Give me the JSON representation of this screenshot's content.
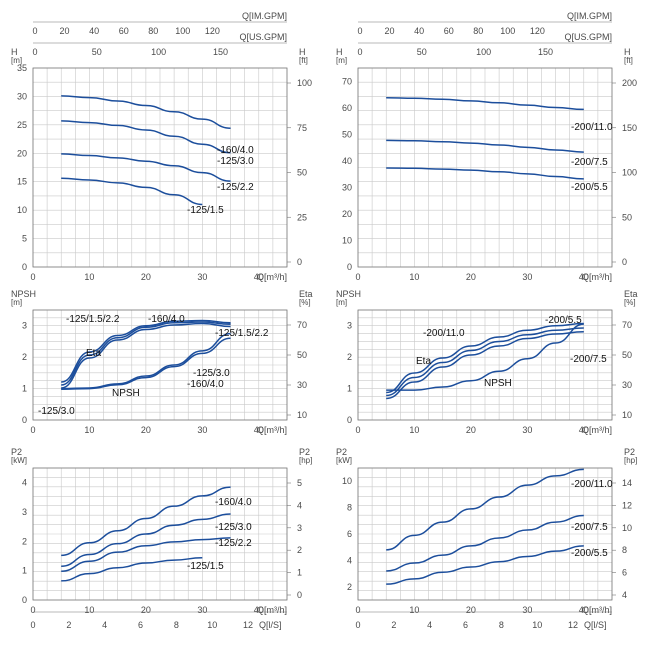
{
  "colors": {
    "curve": "#1c4e9c",
    "grid": "#c9c9c9",
    "axis": "#777777",
    "text": "#4a4a4a",
    "label": "#111111"
  },
  "chart_data": [
    {
      "type": "line",
      "grid": true,
      "top_axes": [
        {
          "label": "Q[IM.GPM]",
          "ticks": [
            0,
            20,
            40,
            60,
            80,
            100,
            120
          ]
        },
        {
          "label": "Q[US.GPM]",
          "ticks": [
            0,
            50,
            100,
            150
          ]
        }
      ],
      "xlabel": "Q[m³/h]",
      "xlim": [
        0,
        45
      ],
      "xticks": [
        0,
        10,
        20,
        30,
        40
      ],
      "ylabel": "H",
      "yunit": "[m]",
      "ylim": [
        0,
        35
      ],
      "yticks": [
        0,
        5,
        10,
        15,
        20,
        25,
        30,
        35
      ],
      "y2label": "H",
      "y2unit": "[ft]",
      "y2ticks": [
        0,
        25,
        50,
        75,
        100
      ],
      "series": [
        {
          "name": "-160/4.0",
          "x": [
            5,
            10,
            15,
            20,
            25,
            30,
            35
          ],
          "y": [
            30.1,
            29.8,
            29.2,
            28.4,
            27.3,
            26.0,
            24.4
          ]
        },
        {
          "name": "-125/3.0",
          "x": [
            5,
            10,
            15,
            20,
            25,
            30,
            35
          ],
          "y": [
            25.7,
            25.4,
            24.9,
            24.1,
            23.0,
            21.6,
            20.1
          ]
        },
        {
          "name": "-125/2.2",
          "x": [
            5,
            10,
            15,
            20,
            25,
            30,
            35
          ],
          "y": [
            19.9,
            19.6,
            19.2,
            18.6,
            17.8,
            16.6,
            15.1
          ]
        },
        {
          "name": "-125/1.5",
          "x": [
            5,
            10,
            15,
            20,
            25,
            30
          ],
          "y": [
            15.6,
            15.3,
            14.8,
            14.0,
            12.7,
            11.0
          ]
        }
      ]
    },
    {
      "type": "line",
      "grid": true,
      "top_axes": [
        {
          "label": "Q[IM.GPM]",
          "ticks": [
            0,
            20,
            40,
            60,
            80,
            100,
            120
          ]
        },
        {
          "label": "Q[US.GPM]",
          "ticks": [
            0,
            50,
            100,
            150
          ]
        }
      ],
      "xlabel": "Q[m³/h]",
      "xlim": [
        0,
        45
      ],
      "xticks": [
        0,
        10,
        20,
        30,
        40
      ],
      "ylabel": "H",
      "yunit": "[m]",
      "ylim": [
        0,
        75
      ],
      "yticks": [
        0,
        10,
        20,
        30,
        40,
        50,
        60,
        70
      ],
      "y2label": "H",
      "y2unit": "[ft]",
      "y2ticks": [
        0,
        50,
        100,
        150,
        200
      ],
      "series": [
        {
          "name": "-200/11.0",
          "x": [
            5,
            10,
            15,
            20,
            25,
            30,
            35,
            40
          ],
          "y": [
            63.8,
            63.6,
            63.2,
            62.6,
            61.9,
            61.0,
            60.1,
            59.4
          ]
        },
        {
          "name": "-200/7.5",
          "x": [
            5,
            10,
            15,
            20,
            25,
            30,
            35,
            40
          ],
          "y": [
            47.7,
            47.6,
            47.2,
            46.7,
            46.0,
            45.1,
            44.1,
            43.3
          ]
        },
        {
          "name": "-200/5.5",
          "x": [
            5,
            10,
            15,
            20,
            25,
            30,
            35,
            40
          ],
          "y": [
            37.3,
            37.2,
            36.9,
            36.5,
            35.9,
            35.1,
            34.1,
            33.2
          ]
        }
      ]
    },
    {
      "type": "line",
      "grid": true,
      "xlabel": "Q[m³/h]",
      "xlim": [
        0,
        45
      ],
      "xticks": [
        0,
        10,
        20,
        30,
        40
      ],
      "ylabel": "NPSH",
      "yunit": "[m]",
      "ylim": [
        0,
        3.5
      ],
      "yticks": [
        0,
        1,
        2,
        3
      ],
      "y2label": "Eta",
      "y2unit": "[%]",
      "y2ticks": [
        10,
        30,
        50,
        70
      ],
      "series": [
        {
          "group": "Eta",
          "x": [
            5,
            10,
            15,
            20,
            25,
            30,
            35
          ],
          "y2": [
            32,
            52,
            63,
            69.5,
            72.5,
            73,
            71.5
          ]
        },
        {
          "group": "Eta",
          "x": [
            5,
            10,
            15,
            20,
            25,
            30,
            35
          ],
          "y2": [
            30,
            50,
            61.5,
            68.5,
            71.5,
            72,
            70.5
          ]
        },
        {
          "group": "Eta",
          "x": [
            5,
            10,
            15,
            20,
            25,
            30,
            35
          ],
          "y2": [
            28,
            48,
            60,
            67,
            70,
            71,
            69
          ]
        },
        {
          "group": "NPSH",
          "x": [
            5,
            10,
            15,
            20,
            25,
            30,
            35
          ],
          "y": [
            1.0,
            1.02,
            1.15,
            1.4,
            1.75,
            2.2,
            2.75
          ]
        },
        {
          "group": "NPSH",
          "x": [
            5,
            10,
            15,
            20,
            25,
            30,
            35
          ],
          "y": [
            0.98,
            1.0,
            1.12,
            1.35,
            1.7,
            2.12,
            2.6
          ]
        }
      ],
      "labels": [
        "-125/1.5/2.2",
        "-160/4.0",
        "-125/1.5/2.2",
        "Eta",
        "-125/3.0",
        "-160/4.0",
        "NPSH",
        "-125/3.0"
      ]
    },
    {
      "type": "line",
      "grid": true,
      "xlabel": "Q[m³/h]",
      "xlim": [
        0,
        45
      ],
      "xticks": [
        0,
        10,
        20,
        30,
        40
      ],
      "ylabel": "NPSH",
      "yunit": "[m]",
      "ylim": [
        0,
        3.5
      ],
      "yticks": [
        0,
        1,
        2,
        3
      ],
      "y2label": "Eta",
      "y2unit": "[%]",
      "y2ticks": [
        10,
        30,
        50,
        70
      ],
      "series": [
        {
          "group": "Eta",
          "name": "-200/5.5",
          "x": [
            5,
            10,
            15,
            20,
            25,
            30,
            35,
            40
          ],
          "y2": [
            25,
            38,
            48,
            56,
            62,
            66.5,
            69.5,
            71
          ]
        },
        {
          "group": "Eta",
          "name": "-200/7.5",
          "x": [
            5,
            10,
            15,
            20,
            25,
            30,
            35,
            40
          ],
          "y2": [
            23,
            35,
            45,
            53,
            59,
            63.5,
            66.5,
            68
          ]
        },
        {
          "group": "Eta",
          "name": "-200/11.0",
          "x": [
            5,
            10,
            15,
            20,
            25,
            30,
            35,
            40
          ],
          "y2": [
            21,
            32,
            42,
            50,
            56,
            61,
            64,
            65.5
          ]
        },
        {
          "group": "NPSH",
          "x": [
            5,
            10,
            15,
            20,
            25,
            30,
            35,
            40
          ],
          "y": [
            0.95,
            0.95,
            1.05,
            1.25,
            1.55,
            1.95,
            2.45,
            3.05
          ]
        }
      ],
      "labels": [
        "-200/5.5",
        "-200/7.5",
        "-200/11.0",
        "Eta",
        "NPSH"
      ]
    },
    {
      "type": "line",
      "grid": true,
      "xlabel": "Q[m³/h]",
      "xlim": [
        0,
        45
      ],
      "xticks": [
        0,
        10,
        20,
        30,
        40
      ],
      "bottom_axis": {
        "label": "Q[l/S]",
        "ticks": [
          0,
          2,
          4,
          6,
          8,
          10,
          12
        ]
      },
      "ylabel": "P2",
      "yunit": "[kW]",
      "ylim": [
        0,
        4.5
      ],
      "yticks": [
        0,
        1,
        2,
        3,
        4
      ],
      "y2label": "P2",
      "y2unit": "[hp]",
      "y2ticks": [
        0,
        1,
        2,
        3,
        4,
        5
      ],
      "series": [
        {
          "name": "-160/4.0",
          "x": [
            5,
            10,
            15,
            20,
            25,
            30,
            35
          ],
          "y": [
            1.52,
            1.95,
            2.36,
            2.78,
            3.2,
            3.55,
            3.85
          ]
        },
        {
          "name": "-125/3.0",
          "x": [
            5,
            10,
            15,
            20,
            25,
            30,
            35
          ],
          "y": [
            1.15,
            1.55,
            1.92,
            2.25,
            2.55,
            2.75,
            2.93
          ]
        },
        {
          "name": "-125/2.2",
          "x": [
            5,
            10,
            15,
            20,
            25,
            30,
            35
          ],
          "y": [
            0.98,
            1.32,
            1.63,
            1.85,
            1.98,
            2.06,
            2.12
          ]
        },
        {
          "name": "-125/1.5",
          "x": [
            5,
            10,
            15,
            20,
            25,
            30
          ],
          "y": [
            0.65,
            0.9,
            1.1,
            1.26,
            1.36,
            1.44
          ]
        }
      ]
    },
    {
      "type": "line",
      "grid": true,
      "xlabel": "Q[m³/h]",
      "xlim": [
        0,
        45
      ],
      "xticks": [
        0,
        10,
        20,
        30,
        40
      ],
      "bottom_axis": {
        "label": "Q[l/S]",
        "ticks": [
          0,
          2,
          4,
          6,
          8,
          10,
          12
        ]
      },
      "ylabel": "P2",
      "yunit": "[kW]",
      "ylim": [
        1,
        11
      ],
      "yticks": [
        2,
        4,
        6,
        8,
        10
      ],
      "y2label": "P2",
      "y2unit": "[hp]",
      "y2ticks": [
        4,
        6,
        8,
        10,
        12,
        14
      ],
      "series": [
        {
          "name": "-200/11.0",
          "x": [
            5,
            10,
            15,
            20,
            25,
            30,
            35,
            40
          ],
          "y": [
            4.8,
            5.9,
            6.9,
            7.9,
            8.8,
            9.7,
            10.4,
            10.9
          ]
        },
        {
          "name": "-200/7.5",
          "x": [
            5,
            10,
            15,
            20,
            25,
            30,
            35,
            40
          ],
          "y": [
            3.2,
            3.8,
            4.4,
            5.1,
            5.7,
            6.3,
            6.9,
            7.4
          ]
        },
        {
          "name": "-200/5.5",
          "x": [
            5,
            10,
            15,
            20,
            25,
            30,
            35,
            40
          ],
          "y": [
            2.2,
            2.6,
            3.1,
            3.5,
            3.9,
            4.3,
            4.7,
            5.1
          ]
        }
      ]
    }
  ]
}
